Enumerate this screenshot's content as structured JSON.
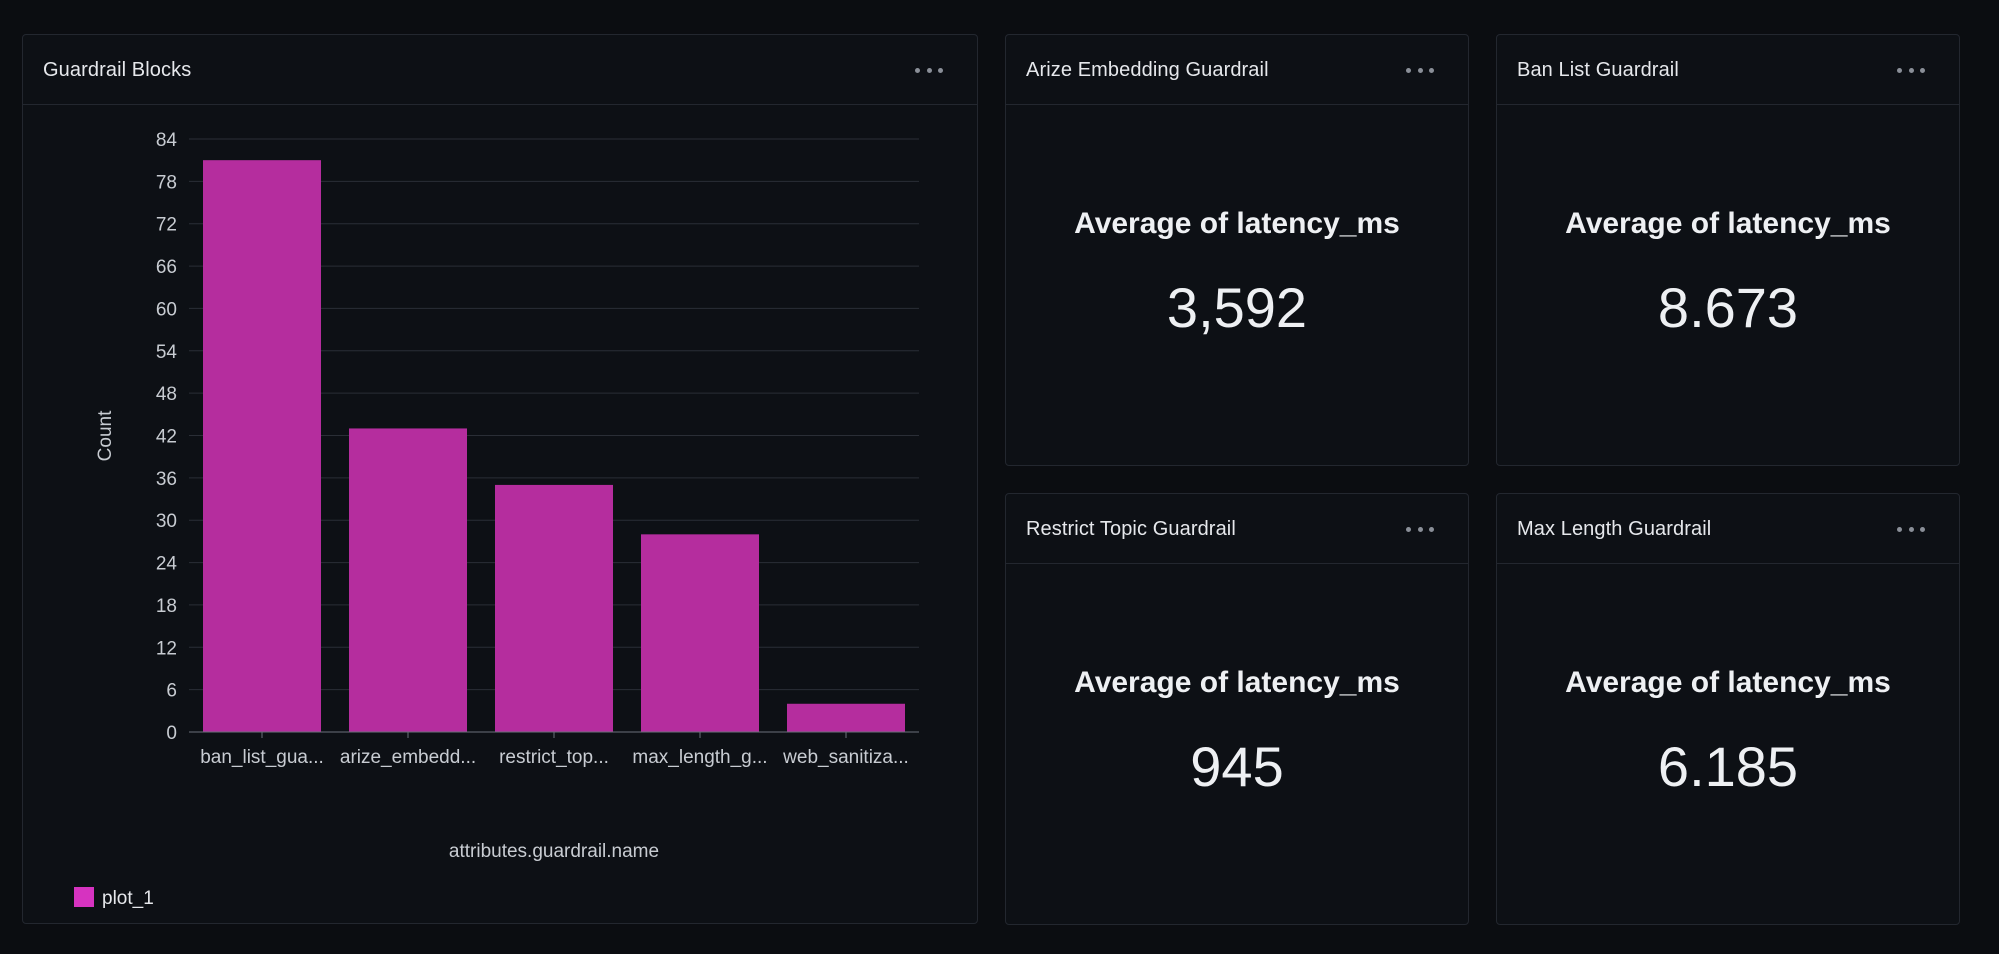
{
  "chart_panel": {
    "title": "Guardrail Blocks"
  },
  "chart_data": {
    "type": "bar",
    "categories": [
      "ban_list_gua...",
      "arize_embedd...",
      "restrict_top...",
      "max_length_g...",
      "web_sanitiza..."
    ],
    "series": [
      {
        "name": "plot_1",
        "values": [
          81,
          43,
          35,
          28,
          4
        ],
        "color": "#b52d9e"
      }
    ],
    "xlabel": "attributes.guardrail.name",
    "ylabel": "Count",
    "ylim": [
      0,
      84
    ],
    "yticks": [
      0,
      6,
      12,
      18,
      24,
      30,
      36,
      42,
      48,
      54,
      60,
      66,
      72,
      78,
      84
    ],
    "grid": true,
    "legend": "bottom-left"
  },
  "stats": [
    {
      "title": "Arize Embedding Guardrail",
      "label": "Average of latency_ms",
      "value": "3,592"
    },
    {
      "title": "Ban List Guardrail",
      "label": "Average of latency_ms",
      "value": "8.673"
    },
    {
      "title": "Restrict Topic Guardrail",
      "label": "Average of latency_ms",
      "value": "945"
    },
    {
      "title": "Max Length Guardrail",
      "label": "Average of latency_ms",
      "value": "6.185"
    }
  ],
  "colors": {
    "background": "#0b0d11",
    "panel": "#0d1015",
    "border": "#23272f",
    "bar": "#b52d9e",
    "legend_swatch": "#d633c0"
  },
  "icons": {
    "panel_menu": "more-horizontal-icon"
  }
}
